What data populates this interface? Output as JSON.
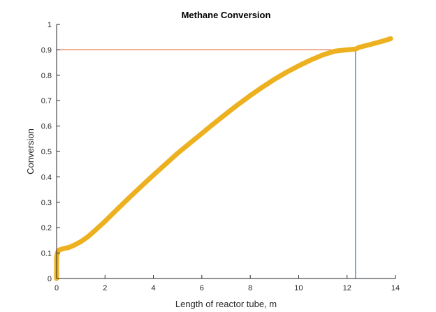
{
  "chart_data": {
    "type": "line",
    "title": "Methane Conversion",
    "xlabel": "Length of reactor tube, m",
    "ylabel": "Conversion",
    "xlim": [
      0,
      14
    ],
    "ylim": [
      0,
      1
    ],
    "xticks": [
      0,
      2,
      4,
      6,
      8,
      10,
      12,
      14
    ],
    "yticks": [
      0,
      0.1,
      0.2,
      0.3,
      0.4,
      0.5,
      0.6,
      0.7,
      0.8,
      0.9,
      1
    ],
    "ytick_labels": [
      "0",
      "0.1",
      "0.2",
      "0.3",
      "0.4",
      "0.5",
      "0.6",
      "0.7",
      "0.8",
      "0.9",
      "1"
    ],
    "grid": false,
    "series": [
      {
        "color": "#EDB120",
        "marker": "asterisk",
        "x": [
          0,
          0,
          0,
          0,
          0.02,
          0.05,
          0.1,
          0.2,
          0.3,
          0.5,
          0.7,
          1.0,
          1.3,
          1.6,
          2.0,
          2.5,
          3.0,
          3.5,
          4.0,
          4.5,
          5.0,
          5.5,
          6.0,
          6.5,
          7.0,
          7.5,
          8.0,
          8.5,
          9.0,
          9.5,
          10.0,
          10.5,
          11.0,
          11.5,
          12.0,
          12.35,
          12.5,
          13.0,
          13.5,
          13.8
        ],
        "y": [
          0,
          0.04,
          0.06,
          0.08,
          0.095,
          0.105,
          0.112,
          0.115,
          0.118,
          0.122,
          0.13,
          0.145,
          0.165,
          0.19,
          0.225,
          0.272,
          0.318,
          0.363,
          0.407,
          0.45,
          0.493,
          0.532,
          0.571,
          0.61,
          0.648,
          0.685,
          0.72,
          0.753,
          0.784,
          0.812,
          0.837,
          0.86,
          0.88,
          0.895,
          0.9,
          0.903,
          0.91,
          0.922,
          0.935,
          0.944
        ]
      }
    ],
    "reference_lines": [
      {
        "orientation": "horizontal",
        "y": 0.9,
        "x_from": 0,
        "x_to": 12.35,
        "color": "#D95319"
      },
      {
        "orientation": "vertical",
        "x": 12.35,
        "y_from": 0,
        "y_to": 0.9,
        "color": "#0072BD"
      }
    ]
  }
}
